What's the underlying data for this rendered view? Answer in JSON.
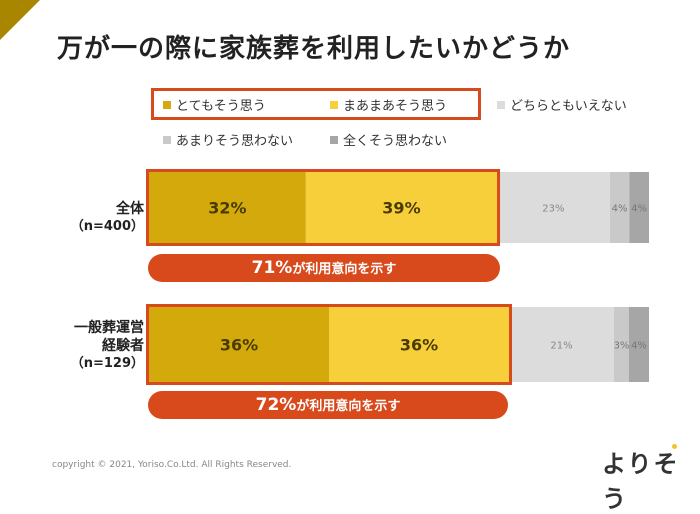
{
  "title": "万が一の際に家族葬を利用したいかどうか",
  "colors": {
    "corner": "#a88600",
    "highlight": "#d64b1e",
    "pill": "#d8491c",
    "s1": "#d4a90b",
    "s2": "#f7cf3a",
    "s3": "#dcdcdc",
    "s4": "#c9c9c9",
    "s5": "#a6a6a6"
  },
  "chart_data": {
    "type": "bar",
    "orientation": "horizontal-stacked-100",
    "categories": [
      {
        "label": "全体",
        "n": "（n=400）"
      },
      {
        "label": "一般葬運営経験者",
        "label_lines": [
          "一般葬運営",
          "経験者"
        ],
        "n": "（n=129）"
      }
    ],
    "series": [
      {
        "name": "とてもそう思う",
        "values": [
          32,
          36
        ],
        "color": "#d4a90b"
      },
      {
        "name": "まあまあそう思う",
        "values": [
          39,
          36
        ],
        "color": "#f7cf3a"
      },
      {
        "name": "どちらともいえない",
        "values": [
          23,
          21
        ],
        "color": "#dcdcdc"
      },
      {
        "name": "あまりそう思わない",
        "values": [
          4,
          3
        ],
        "color": "#c9c9c9"
      },
      {
        "name": "全くそう思わない",
        "values": [
          4,
          4
        ],
        "color": "#a6a6a6"
      }
    ],
    "data_labels": [
      [
        "32%",
        "39%",
        "23%",
        "4%",
        "4%"
      ],
      [
        "36%",
        "36%",
        "21%",
        "3%",
        "4%"
      ]
    ],
    "legend": "top",
    "callouts": [
      {
        "value": "71%",
        "text": "が利用意向を示す"
      },
      {
        "value": "72%",
        "text": "が利用意向を示す"
      }
    ]
  },
  "footer": {
    "copyright": "copyright © 2021,  Yoriso.Co.Ltd. All Rights Reserved.",
    "logo": "よりそう"
  }
}
